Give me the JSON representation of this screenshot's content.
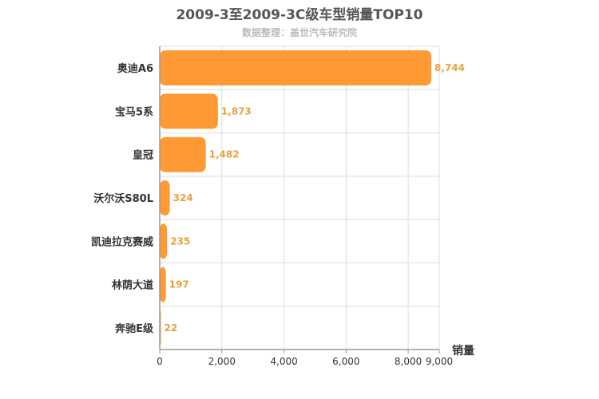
{
  "chart_data": {
    "type": "bar",
    "orientation": "horizontal",
    "title": "2009-3至2009-3C级车型销量TOP10",
    "subtitle": "数据整理：盖世汽车研究院",
    "xlabel": "销量",
    "ylabel": "",
    "categories": [
      "奥迪A6",
      "宝马5系",
      "皇冠",
      "沃尔沃S80L",
      "凯迪拉克赛威",
      "林荫大道",
      "奔驰E级"
    ],
    "values": [
      8744,
      1873,
      1482,
      324,
      235,
      197,
      22
    ],
    "value_labels": [
      "8,744",
      "1,873",
      "1,482",
      "324",
      "235",
      "197",
      "22"
    ],
    "xlim": [
      0,
      9000
    ],
    "x_ticks": [
      0,
      2000,
      4000,
      6000,
      8000,
      9000
    ],
    "x_tick_labels": [
      "0",
      "2,000",
      "4,000",
      "6,000",
      "8,000",
      "9,000"
    ],
    "grid": true,
    "legend": "none",
    "colors": {
      "bar": "#ff9933",
      "value_label": "#e8a040",
      "title": "#555555",
      "subtitle": "#bbbbbb",
      "grid": "#dddddd",
      "axis": "#999999"
    }
  }
}
